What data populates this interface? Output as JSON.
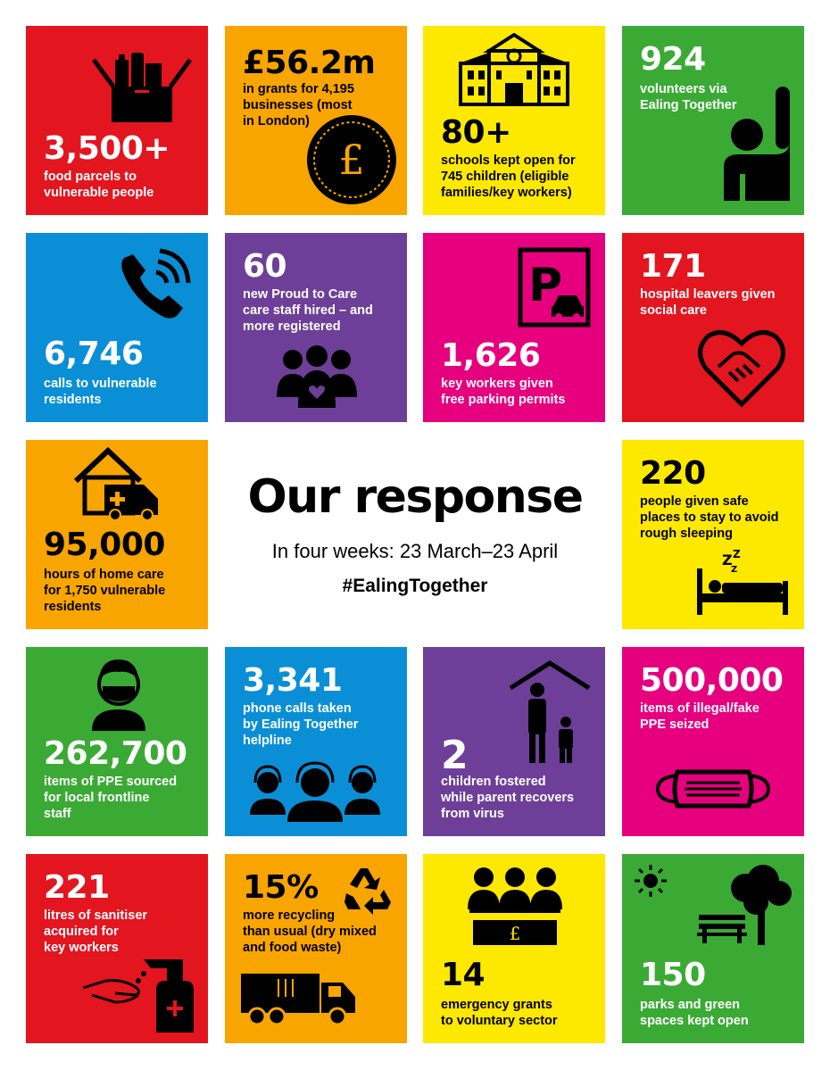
{
  "colors": {
    "red": "#e3151f",
    "orange": "#f8a500",
    "yellow": "#fde800",
    "green": "#3aaa35",
    "blue": "#0a8fd7",
    "purple": "#6d3f98",
    "pink": "#e6007e"
  },
  "center": {
    "title": "Our response",
    "subtitle": "In four weeks: 23 March–23 April",
    "hashtag": "#EalingTogether"
  },
  "tiles": {
    "food": {
      "number": "3,500+",
      "desc": "food parcels to\nvulnerable people",
      "icon": "food-box-icon"
    },
    "grants": {
      "number": "£56.2m",
      "desc": "in grants for 4,195\nbusinesses (most\nin London)",
      "icon": "pound-coin-icon"
    },
    "schools": {
      "number": "80+",
      "desc": "schools kept open for\n745 children (eligible\nfamilies/key workers)",
      "icon": "school-icon"
    },
    "volunteers": {
      "number": "924",
      "desc": "volunteers via\nEaling Together",
      "icon": "raised-hand-icon"
    },
    "calls": {
      "number": "6,746",
      "desc": "calls to vulnerable\nresidents",
      "icon": "phone-icon"
    },
    "care_staff": {
      "number": "60",
      "desc": "new Proud to Care\ncare staff hired – and\nmore registered",
      "icon": "care-group-icon"
    },
    "parking": {
      "number": "1,626",
      "desc": "key workers given\nfree parking permits",
      "icon": "parking-icon"
    },
    "hospital": {
      "number": "171",
      "desc": "hospital leavers given\nsocial care",
      "icon": "heart-hands-icon"
    },
    "home_care": {
      "number": "95,000",
      "desc": "hours of home care\nfor 1,750 vulnerable\nresidents",
      "icon": "house-ambulance-icon"
    },
    "sleeping": {
      "number": "220",
      "desc": "people given safe\nplaces to stay to avoid\nrough sleeping",
      "icon": "bed-icon"
    },
    "ppe": {
      "number": "262,700",
      "desc": "items of PPE sourced\nfor local frontline\nstaff",
      "icon": "masked-person-icon"
    },
    "helpline": {
      "number": "3,341",
      "desc": "phone calls taken\nby Ealing Together\nhelpline",
      "icon": "headset-group-icon"
    },
    "fostered": {
      "number": "2",
      "desc": "children fostered\nwhile parent recovers\nfrom virus",
      "icon": "family-house-icon"
    },
    "fake_ppe": {
      "number": "500,000",
      "desc": "items of illegal/fake\nPPE seized",
      "icon": "face-mask-icon"
    },
    "sanitiser": {
      "number": "221",
      "desc": "litres of sanitiser\nacquired for\nkey workers",
      "icon": "sanitiser-icon"
    },
    "recycling": {
      "number": "15%",
      "desc": "more recycling\nthan usual (dry mixed\nand food waste)",
      "icon": "recycling-truck-icon"
    },
    "emergency": {
      "number": "14",
      "desc": "emergency grants\nto voluntary sector",
      "icon": "grant-desk-icon"
    },
    "parks": {
      "number": "150",
      "desc": "parks and green\nspaces kept open",
      "icon": "park-icon"
    }
  }
}
